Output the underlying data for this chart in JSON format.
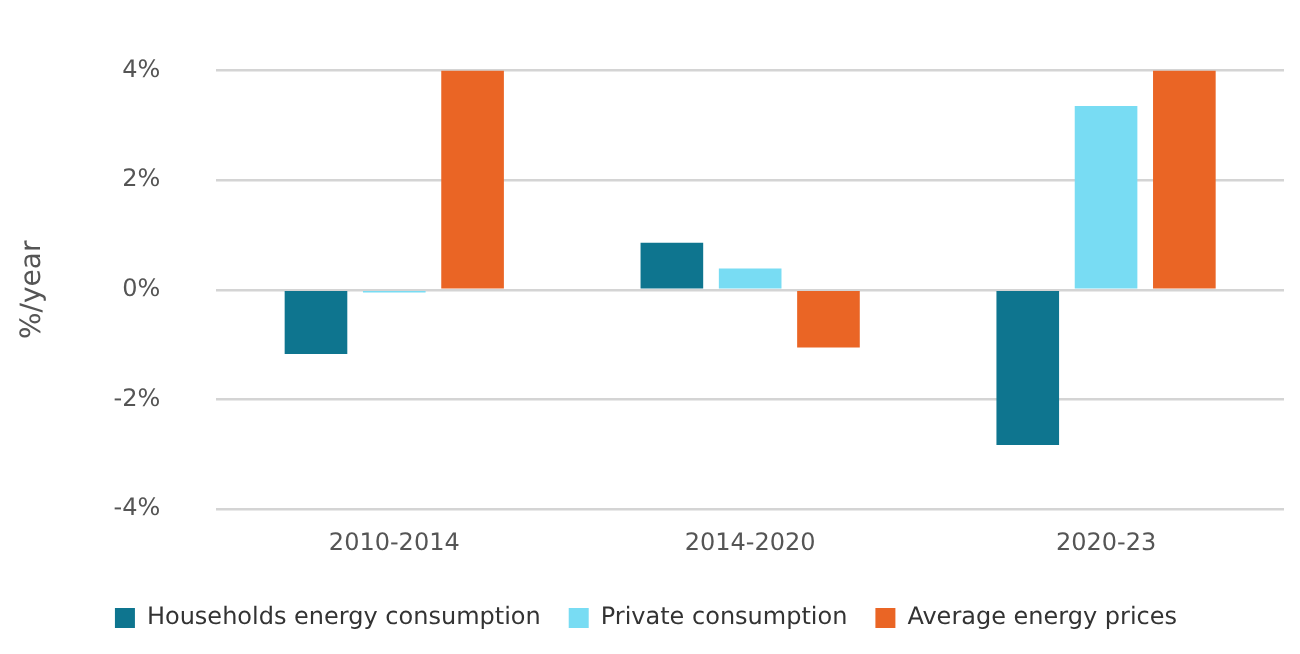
{
  "chart_data": {
    "type": "bar",
    "ylabel": "%/year",
    "categories": [
      "2010-2014",
      "2014-2020",
      "2020-23"
    ],
    "series": [
      {
        "name": "Households energy consumption",
        "color": "#0e758f",
        "values": [
          -1.17,
          0.86,
          -2.83
        ]
      },
      {
        "name": "Private consumption",
        "color": "#78dcf3",
        "values": [
          -0.05,
          0.39,
          3.35
        ]
      },
      {
        "name": "Average energy prices",
        "color": "#ea6525",
        "values": [
          4,
          -1.05,
          4
        ]
      }
    ],
    "ylim": [
      -4,
      4
    ],
    "yticks": [
      {
        "value": -4,
        "label": "-4%"
      },
      {
        "value": -2,
        "label": "-2%"
      },
      {
        "value": 0,
        "label": "0%"
      },
      {
        "value": 2,
        "label": "2%"
      },
      {
        "value": 4,
        "label": "4%"
      }
    ],
    "grid": "y",
    "legend": "bottom"
  }
}
